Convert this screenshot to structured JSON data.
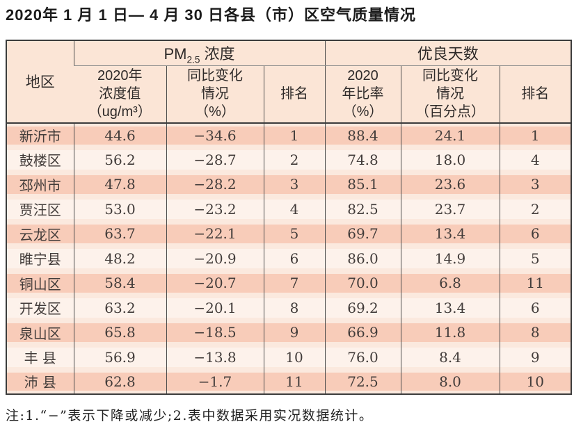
{
  "title": "2020年 1 月 1 日— 4 月 30 日各县（市）区空气质量情况",
  "table": {
    "header": {
      "region": "地区",
      "pm_group": {
        "prefix": "PM",
        "sub": "2.5",
        "suffix": " 浓度"
      },
      "good_group": "优良天数",
      "sub": [
        "2020年\n浓度值\n（ug/m³）",
        "同比变化\n情况\n（%）",
        "排名",
        "2020\n年比率\n（%）",
        "同比变化\n情况\n（百分点）",
        "排名"
      ]
    },
    "col_keys": [
      "region",
      "pm-value",
      "pm-change",
      "pm-rank",
      "good-rate",
      "good-change",
      "good-rank"
    ],
    "rows": [
      [
        "新沂市",
        "44.6",
        "−34.6",
        "1",
        "88.4",
        "24.1",
        "1"
      ],
      [
        "鼓楼区",
        "56.2",
        "−28.7",
        "2",
        "74.8",
        "18.0",
        "4"
      ],
      [
        "邳州市",
        "47.8",
        "−28.2",
        "3",
        "85.1",
        "23.6",
        "3"
      ],
      [
        "贾汪区",
        "53.0",
        "−23.2",
        "4",
        "82.5",
        "23.7",
        "2"
      ],
      [
        "云龙区",
        "63.7",
        "−22.1",
        "5",
        "69.7",
        "13.4",
        "6"
      ],
      [
        "睢宁县",
        "48.2",
        "−20.9",
        "6",
        "86.0",
        "14.9",
        "5"
      ],
      [
        "铜山区",
        "58.4",
        "−20.7",
        "7",
        "70.0",
        "6.8",
        "11"
      ],
      [
        "开发区",
        "63.2",
        "−20.1",
        "8",
        "69.2",
        "13.4",
        "6"
      ],
      [
        "泉山区",
        "65.8",
        "−18.5",
        "9",
        "66.9",
        "11.8",
        "8"
      ],
      [
        "丰 县",
        "56.9",
        "−13.8",
        "10",
        "76.0",
        "8.4",
        "9"
      ],
      [
        "沛 县",
        "62.8",
        "−1.7",
        "11",
        "72.5",
        "8.0",
        "10"
      ]
    ]
  },
  "note": "注:1.“−”表示下降或减少;2.表中数据采用实况数据统计。",
  "colors": {
    "row_salmon": "#f8ccb9",
    "row_cream": "#fdf2eb",
    "row_gap": "#fbe9de",
    "header_bg": "#fbe5d6",
    "border_dark": "#3c3c3c",
    "grid_line": "#4b4b4b",
    "group_underline": "#8f8f8f",
    "text": "#423c3a"
  }
}
